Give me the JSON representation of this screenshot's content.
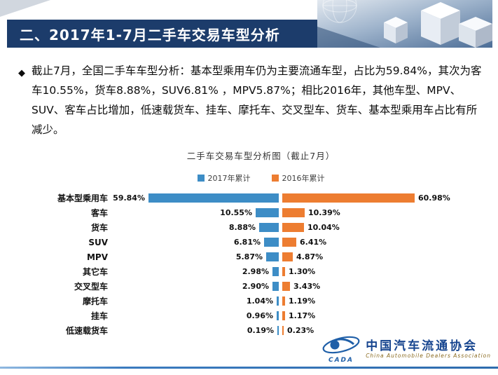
{
  "header": {
    "title": "二、2017年1-7月二手车交易车型分析"
  },
  "body": {
    "bullet": "◆",
    "text": "截止7月，全国二手车车型分析：基本型乘用车仍为主要流通车型，占比为59.84%，其次为客车10.55%，货车8.88%，SUV6.81% ，MPV5.87%；相比2016年，其他车型、MPV、SUV、客车占比增加，低速载货车、挂车、摩托车、交叉型车、货车、基本型乘用车占比有所减少。"
  },
  "chart_data": {
    "type": "bar",
    "orientation": "horizontal-diverging",
    "title": "二手车交易车型分析图（截止7月）",
    "categories": [
      "基本型乘用车",
      "客车",
      "货车",
      "SUV",
      "MPV",
      "其它车",
      "交叉型车",
      "摩托车",
      "挂车",
      "低速载货车"
    ],
    "series": [
      {
        "name": "2017年累计",
        "color": "#3d8dc6",
        "values": [
          59.84,
          10.55,
          8.88,
          6.81,
          5.87,
          2.98,
          2.9,
          1.04,
          0.96,
          0.19
        ]
      },
      {
        "name": "2016年累计",
        "color": "#ed7d31",
        "values": [
          60.98,
          10.39,
          10.04,
          6.41,
          4.87,
          1.3,
          3.43,
          1.19,
          1.17,
          0.23
        ]
      }
    ],
    "value_suffix": "%",
    "xlim": [
      0,
      62
    ],
    "legend_position": "top",
    "grid": false
  },
  "footer": {
    "org_cn": "中国汽车流通协会",
    "org_en": "China Automobile Dealers Association",
    "logo_abbr": "CADA"
  },
  "colors": {
    "header_bg": "#1c3c6b",
    "bar_2017": "#3d8dc6",
    "bar_2016": "#ed7d31",
    "footer_line": "#3b7bbf"
  }
}
